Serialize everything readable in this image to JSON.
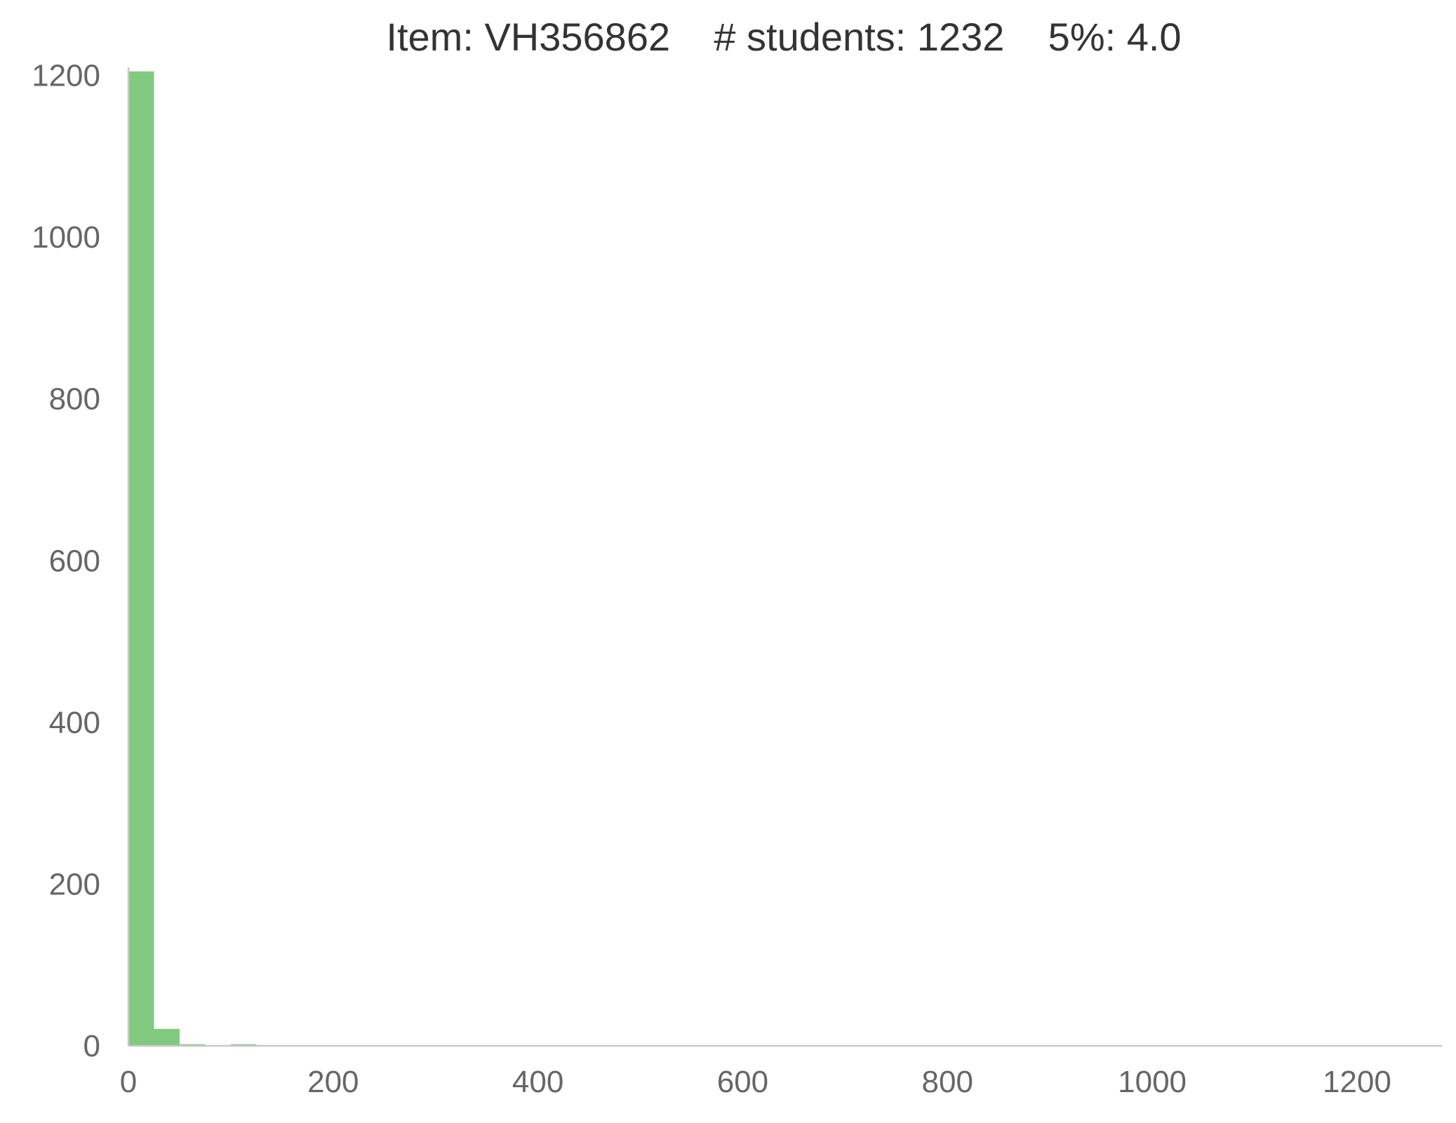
{
  "chart_data": {
    "type": "bar",
    "title": "Item: VH356862    # students: 1232    5%: 4.0",
    "xlabel": "",
    "ylabel": "",
    "bin_width": 25,
    "bins": [
      {
        "x0": 0,
        "x1": 25,
        "count": 1205
      },
      {
        "x0": 25,
        "x1": 50,
        "count": 21
      },
      {
        "x0": 50,
        "x1": 75,
        "count": 2
      },
      {
        "x0": 75,
        "x1": 100,
        "count": 0
      },
      {
        "x0": 100,
        "x1": 125,
        "count": 2
      }
    ],
    "xlim": [
      0,
      1283
    ],
    "ylim": [
      0,
      1210
    ],
    "xticks": [
      0,
      200,
      400,
      600,
      800,
      1000,
      1200
    ],
    "yticks": [
      0,
      200,
      400,
      600,
      800,
      1000,
      1200
    ],
    "grid": false,
    "bar_color": "#81c97f"
  }
}
